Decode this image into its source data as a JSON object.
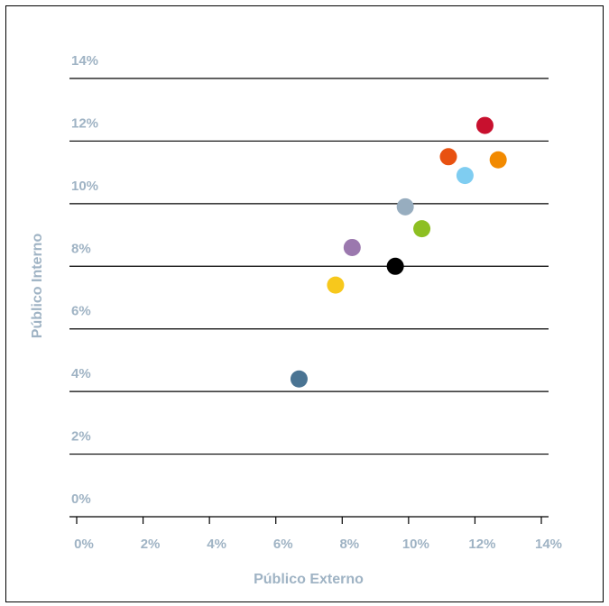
{
  "chart_data": {
    "type": "scatter",
    "title": "",
    "xlabel": "Público Externo",
    "ylabel": "Público Interno",
    "xlim": [
      0,
      14
    ],
    "ylim": [
      0,
      14
    ],
    "x_ticks": [
      "0%",
      "2%",
      "4%",
      "6%",
      "8%",
      "10%",
      "12%",
      "14%"
    ],
    "y_ticks": [
      "0%",
      "2%",
      "4%",
      "6%",
      "8%",
      "10%",
      "12%",
      "14%"
    ],
    "grid": "horizontal",
    "label_color": "#9fb3c4",
    "series": [
      {
        "x": 6.7,
        "y": 4.4,
        "color": "#4a7493"
      },
      {
        "x": 7.8,
        "y": 7.4,
        "color": "#f7c81c"
      },
      {
        "x": 8.3,
        "y": 8.6,
        "color": "#9b78ae"
      },
      {
        "x": 9.6,
        "y": 8.0,
        "color": "#000000"
      },
      {
        "x": 9.9,
        "y": 9.9,
        "color": "#97adbf"
      },
      {
        "x": 10.4,
        "y": 9.2,
        "color": "#8dbf22"
      },
      {
        "x": 11.2,
        "y": 11.5,
        "color": "#e85111"
      },
      {
        "x": 11.7,
        "y": 10.9,
        "color": "#7fcdf1"
      },
      {
        "x": 12.3,
        "y": 12.5,
        "color": "#c8102e"
      },
      {
        "x": 12.7,
        "y": 11.4,
        "color": "#f28a00"
      }
    ]
  }
}
